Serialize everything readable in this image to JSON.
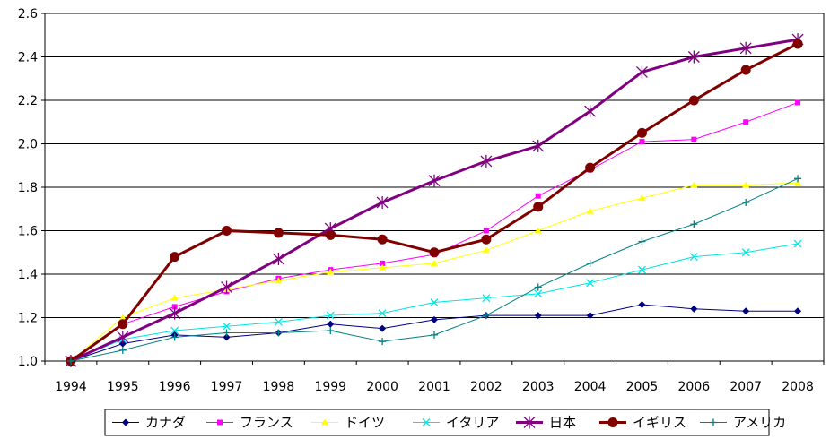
{
  "chart_data": {
    "type": "line",
    "x": [
      "1994",
      "1995",
      "1996",
      "1997",
      "1998",
      "1999",
      "2000",
      "2001",
      "2002",
      "2003",
      "2004",
      "2005",
      "2006",
      "2007",
      "2008"
    ],
    "ylim": [
      1.0,
      2.6
    ],
    "yticks": [
      "1.0",
      "1.2",
      "1.4",
      "1.6",
      "1.8",
      "2.0",
      "2.2",
      "2.4",
      "2.6"
    ],
    "ytick_values": [
      1.0,
      1.2,
      1.4,
      1.6,
      1.8,
      2.0,
      2.2,
      2.4,
      2.6
    ],
    "grid": true,
    "legend_position": "bottom",
    "series": [
      {
        "name": "カナダ",
        "color": "#000080",
        "marker": "diamond",
        "values": [
          1.0,
          1.08,
          1.12,
          1.11,
          1.13,
          1.17,
          1.15,
          1.19,
          1.21,
          1.21,
          1.21,
          1.26,
          1.24,
          1.23,
          1.23
        ]
      },
      {
        "name": "フランス",
        "color": "#ff00ff",
        "marker": "square",
        "values": [
          1.0,
          1.17,
          1.25,
          1.32,
          1.38,
          1.42,
          1.45,
          1.49,
          1.6,
          1.76,
          1.88,
          2.01,
          2.02,
          2.1,
          2.19
        ]
      },
      {
        "name": "ドイツ",
        "color": "#ffff00",
        "marker": "triangle",
        "values": [
          1.0,
          1.2,
          1.29,
          1.33,
          1.37,
          1.41,
          1.43,
          1.45,
          1.51,
          1.6,
          1.69,
          1.75,
          1.81,
          1.81,
          1.82
        ]
      },
      {
        "name": "イタリア",
        "color": "#00e5e5",
        "marker": "x",
        "values": [
          1.0,
          1.1,
          1.14,
          1.16,
          1.18,
          1.21,
          1.22,
          1.27,
          1.29,
          1.31,
          1.36,
          1.42,
          1.48,
          1.5,
          1.54
        ]
      },
      {
        "name": "日本",
        "color": "#800080",
        "marker": "star",
        "values": [
          1.0,
          1.11,
          1.22,
          1.34,
          1.47,
          1.61,
          1.73,
          1.83,
          1.92,
          1.99,
          2.15,
          2.33,
          2.4,
          2.44,
          2.48
        ]
      },
      {
        "name": "イギリス",
        "color": "#800000",
        "marker": "circle",
        "values": [
          1.0,
          1.17,
          1.48,
          1.6,
          1.59,
          1.58,
          1.56,
          1.5,
          1.56,
          1.71,
          1.89,
          2.05,
          2.2,
          2.34,
          2.46
        ]
      },
      {
        "name": "アメリカ",
        "color": "#008080",
        "marker": "plus",
        "values": [
          1.0,
          1.05,
          1.11,
          1.13,
          1.13,
          1.14,
          1.09,
          1.12,
          1.21,
          1.34,
          1.45,
          1.55,
          1.63,
          1.73,
          1.84
        ]
      }
    ]
  }
}
